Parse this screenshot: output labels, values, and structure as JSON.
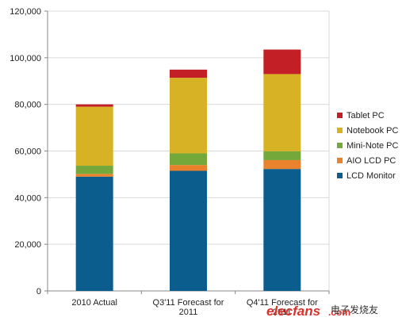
{
  "chart_data": {
    "type": "bar",
    "stacked": true,
    "categories": [
      [
        "2010 Actual"
      ],
      [
        "Q3'11 Forecast for",
        "2011"
      ],
      [
        "Q4'11 Forecast for",
        "2011"
      ]
    ],
    "series": [
      {
        "name": "LCD Monitor",
        "color": "#0b5d8e",
        "values": [
          49000,
          51500,
          52300
        ]
      },
      {
        "name": "AIO LCD PC",
        "color": "#e8822c",
        "values": [
          1200,
          2500,
          3800
        ]
      },
      {
        "name": "Mini-Note PC",
        "color": "#74a83a",
        "values": [
          3500,
          5000,
          3800
        ]
      },
      {
        "name": "Notebook PC",
        "color": "#d6b224",
        "values": [
          25300,
          32400,
          33100
        ]
      },
      {
        "name": "Tablet PC",
        "color": "#c21f26",
        "values": [
          1000,
          3500,
          10500
        ]
      }
    ],
    "yticks": [
      "0",
      "20,000",
      "40,000",
      "60,000",
      "80,000",
      "100,000",
      "120,000"
    ],
    "ylim": [
      0,
      120000
    ],
    "grid": true,
    "legend_position": "right",
    "title": "",
    "xlabel": "",
    "ylabel": ""
  },
  "watermark": {
    "brand": "elecfans",
    "domain": ".com",
    "cn_text": "电子发烧友"
  }
}
